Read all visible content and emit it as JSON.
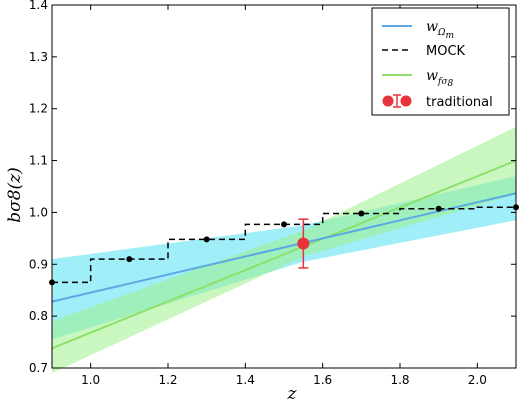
{
  "chart_data": {
    "type": "line",
    "xlabel": "z",
    "ylabel": "bσ8(z)",
    "xlim": [
      0.9,
      2.1
    ],
    "ylim": [
      0.7,
      1.4
    ],
    "xticks": [
      "1.0",
      "1.2",
      "1.4",
      "1.6",
      "1.8",
      "2.0"
    ],
    "xtick_values": [
      1.0,
      1.2,
      1.4,
      1.6,
      1.8,
      2.0
    ],
    "yticks": [
      "0.7",
      "0.8",
      "0.9",
      "1.0",
      "1.1",
      "1.2",
      "1.3",
      "1.4"
    ],
    "ytick_values": [
      0.7,
      0.8,
      0.9,
      1.0,
      1.1,
      1.2,
      1.3,
      1.4
    ],
    "grid": false,
    "legend_position": "top-right",
    "legend": [
      "w",
      "Ω",
      "m",
      "MOCK",
      "w",
      "fσ",
      "8",
      "traditional"
    ],
    "series": {
      "w_omega_m": {
        "color": "#5aa9e6",
        "band_color": "#7fe8f5",
        "line": [
          [
            0.9,
            0.828
          ],
          [
            2.1,
            1.037
          ]
        ],
        "band_upper": [
          [
            0.9,
            0.91
          ],
          [
            1.55,
            0.975
          ],
          [
            2.1,
            1.07
          ]
        ],
        "band_lower": [
          [
            0.9,
            0.755
          ],
          [
            1.55,
            0.905
          ],
          [
            2.1,
            0.985
          ]
        ]
      },
      "w_fsigma8": {
        "color": "#8ee06a",
        "band_color": "#9cf08a",
        "line": [
          [
            0.9,
            0.738
          ],
          [
            2.1,
            1.1
          ]
        ],
        "band_upper": [
          [
            0.9,
            0.79
          ],
          [
            1.55,
            0.965
          ],
          [
            2.1,
            1.165
          ]
        ],
        "band_lower": [
          [
            0.9,
            0.69
          ],
          [
            1.55,
            0.915
          ],
          [
            2.1,
            1.035
          ]
        ]
      },
      "mock": {
        "color": "#000000",
        "step_edges": [
          0.9,
          1.0,
          1.2,
          1.4,
          1.6,
          1.8,
          2.0,
          2.1
        ],
        "step_values": [
          0.865,
          0.91,
          0.948,
          0.977,
          0.998,
          1.007,
          1.01
        ],
        "points_x": [
          0.9,
          1.1,
          1.3,
          1.5,
          1.7,
          1.9,
          2.1
        ],
        "points_y": [
          0.865,
          0.91,
          0.948,
          0.977,
          0.998,
          1.007,
          1.01
        ]
      },
      "traditional": {
        "color": "#e8323c",
        "x": 1.55,
        "y": 0.94,
        "yerr_low": 0.893,
        "yerr_high": 0.987
      }
    }
  }
}
